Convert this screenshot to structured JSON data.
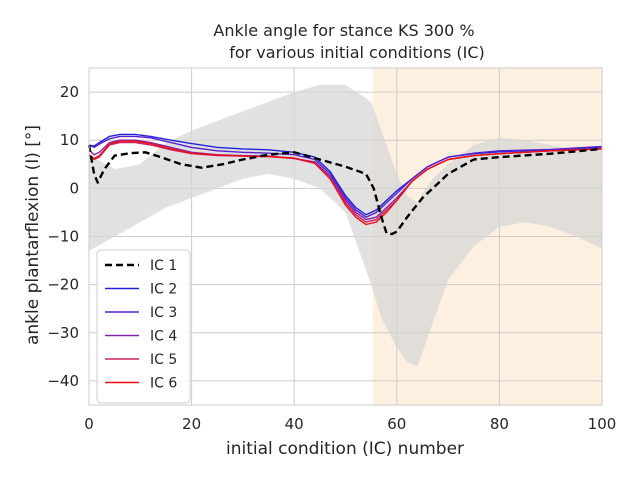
{
  "chart_data": {
    "type": "line",
    "title_line1": "Ankle angle for stance KS 300 %",
    "title_line2": "for various initial conditions (IC)",
    "xlabel": "initial condition (IC) number",
    "ylabel": "ankle plantarflexion (I) [°]",
    "xlim": [
      0,
      100
    ],
    "ylim": [
      -45,
      25
    ],
    "x_ticks": [
      0,
      20,
      40,
      60,
      80,
      100
    ],
    "y_ticks": [
      -40,
      -30,
      -20,
      -10,
      0,
      10,
      20
    ],
    "grid": true,
    "legend_position": "lower-left",
    "swing_region": {
      "x_start": 55.3,
      "x_end": 100,
      "color": "#fdf0e0"
    },
    "reference_band": {
      "color": "#d5d5d5",
      "x": [
        0,
        5,
        10,
        15,
        20,
        25,
        30,
        35,
        40,
        45,
        50,
        55,
        57,
        60,
        62,
        64,
        65,
        67,
        70,
        75,
        80,
        85,
        90,
        95,
        100
      ],
      "upper": [
        7,
        4,
        5,
        9.5,
        12,
        14,
        16,
        18,
        20,
        21.5,
        21.5,
        18,
        12,
        3,
        -1.5,
        -3,
        -1,
        2,
        5,
        9,
        10.5,
        10,
        9,
        8,
        8
      ],
      "lower": [
        -13,
        -10,
        -7,
        -4,
        -2,
        0,
        2,
        3,
        2,
        0,
        -5,
        -20,
        -27,
        -33,
        -36,
        -37,
        -34,
        -28,
        -19,
        -12,
        -8,
        -7,
        -8,
        -10,
        -12.5
      ]
    },
    "series": [
      {
        "name": "IC 1",
        "color": "#000000",
        "dashed": true,
        "x": [
          0,
          1,
          1.7,
          3,
          5,
          8,
          11,
          14,
          18,
          22,
          26,
          30,
          35,
          40,
          45,
          50,
          54,
          55.5,
          57,
          58,
          59,
          60,
          62,
          65,
          70,
          75,
          80,
          90,
          100
        ],
        "y": [
          9,
          3,
          1.2,
          4,
          6.8,
          7.3,
          7.5,
          6.5,
          5,
          4.3,
          5,
          6,
          7,
          7.5,
          6,
          4.5,
          3,
          0,
          -6,
          -9.3,
          -9.5,
          -9,
          -6,
          -2,
          3,
          6,
          6.5,
          7.2,
          8.2
        ]
      },
      {
        "name": "IC 2",
        "color": "#2222dd",
        "dashed": false,
        "x": [
          0,
          1,
          2,
          4,
          6,
          9,
          12,
          16,
          20,
          25,
          30,
          35,
          40,
          44,
          47,
          50,
          52,
          54,
          56,
          58,
          60,
          63,
          66,
          70,
          75,
          80,
          90,
          100
        ],
        "y": [
          9,
          8.8,
          9.5,
          10.8,
          11.2,
          11.2,
          10.8,
          10,
          9.3,
          8.5,
          8.2,
          8,
          7.5,
          6.5,
          3.5,
          -1.5,
          -4,
          -5.5,
          -4.5,
          -2.5,
          -0.5,
          2,
          4.5,
          6.5,
          7.2,
          7.6,
          8,
          8.6
        ]
      },
      {
        "name": "IC 3",
        "color": "#5522cc",
        "dashed": false,
        "x": [
          0,
          1,
          2,
          4,
          6,
          9,
          12,
          16,
          20,
          25,
          30,
          35,
          40,
          44,
          47,
          50,
          52,
          54,
          56,
          58,
          60,
          63,
          66,
          70,
          75,
          80,
          90,
          100
        ],
        "y": [
          9,
          8.5,
          9.2,
          10.3,
          10.8,
          10.8,
          10.5,
          9.5,
          8.5,
          7.8,
          7.5,
          7.3,
          7,
          6,
          3,
          -2,
          -4.5,
          -6,
          -5,
          -3,
          -1,
          2,
          4.5,
          6.5,
          7.3,
          7.8,
          8.1,
          8.7
        ]
      },
      {
        "name": "IC 4",
        "color": "#8822aa",
        "dashed": false,
        "x": [
          0,
          1,
          2,
          4,
          6,
          9,
          12,
          16,
          20,
          25,
          30,
          35,
          40,
          44,
          47,
          50,
          52,
          54,
          56,
          58,
          60,
          63,
          66,
          70,
          75,
          80,
          90,
          100
        ],
        "y": [
          8,
          7,
          7.5,
          9.5,
          10,
          10,
          9.5,
          8.5,
          7.5,
          7,
          6.8,
          6.7,
          6.2,
          5.5,
          2.5,
          -2.5,
          -5,
          -6.5,
          -6,
          -4,
          -2,
          1.5,
          4,
          6,
          6.8,
          7.2,
          7.8,
          8.3
        ]
      },
      {
        "name": "IC 5",
        "color": "#cc2266",
        "dashed": false,
        "x": [
          0,
          1,
          2,
          4,
          6,
          9,
          12,
          16,
          20,
          25,
          30,
          35,
          40,
          44,
          47,
          50,
          52,
          54,
          56,
          58,
          60,
          63,
          66,
          70,
          75,
          80,
          90,
          100
        ],
        "y": [
          7,
          6,
          6.5,
          9,
          9.5,
          9.5,
          9,
          8,
          7.2,
          6.8,
          6.7,
          6.6,
          6.2,
          5.2,
          2,
          -3,
          -5.5,
          -7,
          -6.5,
          -4.5,
          -2.5,
          1.5,
          4,
          6,
          6.8,
          7.2,
          7.8,
          8.2
        ]
      },
      {
        "name": "IC 6",
        "color": "#ee1111",
        "dashed": false,
        "x": [
          0,
          1,
          2,
          4,
          6,
          9,
          12,
          16,
          20,
          25,
          30,
          35,
          40,
          44,
          47,
          50,
          52,
          54,
          56,
          58,
          60,
          63,
          66,
          70,
          75,
          80,
          90,
          100
        ],
        "y": [
          7,
          6.2,
          6.8,
          9.2,
          9.8,
          9.8,
          9.3,
          8.2,
          7.3,
          6.9,
          6.7,
          6.6,
          6.3,
          5.3,
          2,
          -3.5,
          -6,
          -7.5,
          -7,
          -5,
          -2.5,
          1.5,
          4,
          6,
          6.8,
          7.2,
          7.8,
          8.2
        ]
      }
    ]
  }
}
